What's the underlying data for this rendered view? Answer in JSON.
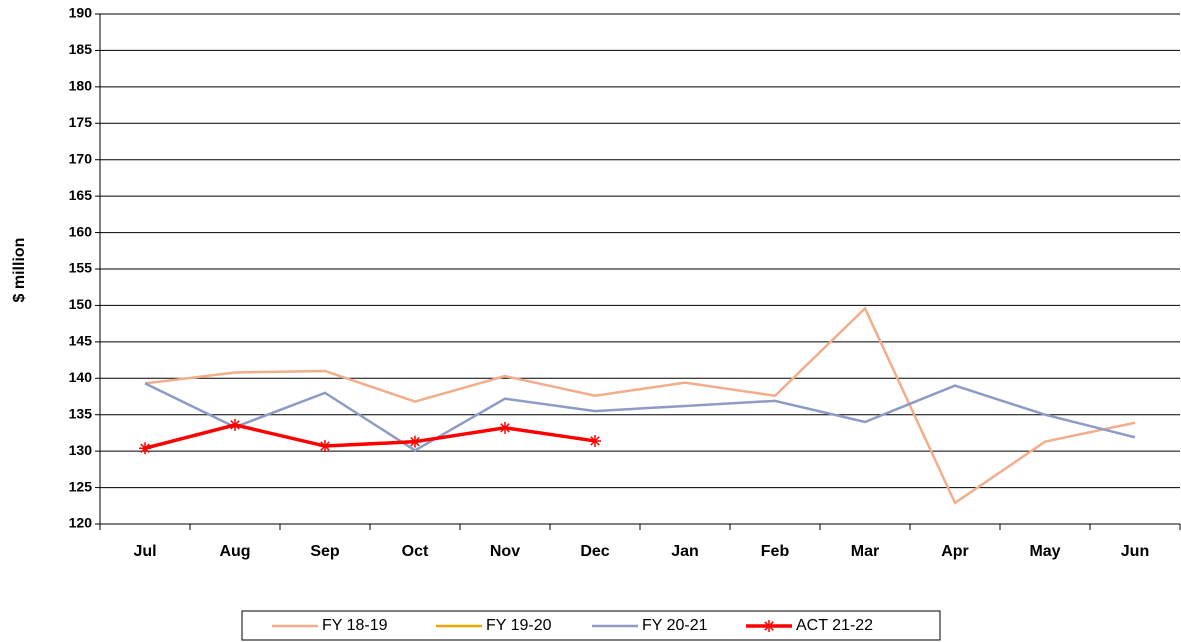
{
  "chart_data": {
    "type": "line",
    "y_label": "$ million",
    "categories": [
      "Jul",
      "Aug",
      "Sep",
      "Oct",
      "Nov",
      "Dec",
      "Jan",
      "Feb",
      "Mar",
      "Apr",
      "May",
      "Jun"
    ],
    "series": [
      {
        "name": "FY 18-19",
        "color": "#F2AE8C",
        "line_width": 2.5,
        "values": [
          139.3,
          140.8,
          141.0,
          136.8,
          140.3,
          137.6,
          139.4,
          137.6,
          149.6,
          122.9,
          131.3,
          133.9
        ]
      },
      {
        "name": "FY 19-20",
        "color": "#E8A800",
        "line_width": 2.5,
        "values": [
          null,
          null,
          null,
          null,
          null,
          null,
          null,
          null,
          null,
          null,
          null,
          null
        ]
      },
      {
        "name": "FY 20-21",
        "color": "#8D9BC6",
        "line_width": 2.5,
        "values": [
          139.3,
          133.3,
          138.0,
          130.1,
          137.2,
          135.5,
          136.2,
          136.9,
          134.0,
          139.0,
          135.0,
          131.9
        ]
      },
      {
        "name": "ACT 21-22",
        "color": "#FF0000",
        "line_width": 3.5,
        "marker": "asterisk",
        "values": [
          130.4,
          133.6,
          130.7,
          131.3,
          133.2,
          131.4,
          null,
          null,
          null,
          null,
          null,
          null
        ]
      }
    ],
    "ylim": [
      120,
      190
    ],
    "yticks": [
      120,
      125,
      130,
      135,
      140,
      145,
      150,
      155,
      160,
      165,
      170,
      175,
      180,
      185,
      190
    ],
    "grid": true,
    "legend": "bottom"
  }
}
